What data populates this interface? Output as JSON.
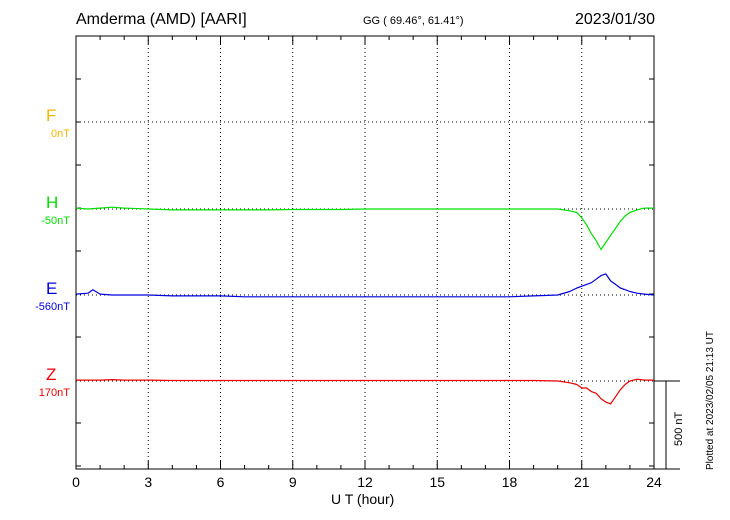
{
  "header": {
    "title": "Amderma (AMD)  [AARI]",
    "coords": "GG ( 69.46°,  61.41°)",
    "date": "2023/01/30"
  },
  "footer": {
    "plotted": "Plotted at 2023/02/05 21:13 UT"
  },
  "scale_bar": {
    "label": "500 nT",
    "value_nT": 500
  },
  "chart_data": {
    "type": "line",
    "xlabel": "U T (hour)",
    "xlim": [
      0,
      24
    ],
    "x_ticks": [
      0,
      3,
      6,
      9,
      12,
      15,
      18,
      21,
      24
    ],
    "x_tick_labels": [
      "0",
      "3",
      "6",
      "9",
      "12",
      "15",
      "18",
      "21",
      "24"
    ],
    "grid": true,
    "series": [
      {
        "name": "F",
        "baseline_label": "0nT",
        "color": "#f5b800",
        "x": [],
        "y": []
      },
      {
        "name": "H",
        "baseline_label": "-50nT",
        "color": "#00e000",
        "x": [
          0,
          0.5,
          1,
          1.5,
          2,
          3,
          4,
          5,
          6,
          7,
          8,
          9,
          10,
          11,
          12,
          13,
          14,
          15,
          16,
          17,
          18,
          19,
          20,
          20.5,
          20.8,
          21,
          21.2,
          21.4,
          21.6,
          21.8,
          22,
          22.2,
          22.4,
          22.6,
          22.8,
          23,
          23.3,
          23.6,
          24
        ],
        "y": [
          5,
          0,
          5,
          10,
          5,
          0,
          -5,
          -5,
          -5,
          -5,
          -5,
          -3,
          -3,
          -3,
          0,
          0,
          0,
          0,
          0,
          0,
          0,
          0,
          0,
          -10,
          -20,
          -50,
          -90,
          -140,
          -180,
          -230,
          -190,
          -150,
          -110,
          -70,
          -40,
          -20,
          -5,
          5,
          5
        ]
      },
      {
        "name": "E",
        "baseline_label": "-560nT",
        "color": "#0000dd",
        "x": [
          0,
          0.5,
          0.7,
          1,
          1.5,
          2,
          3,
          4,
          5,
          6,
          7,
          8,
          9,
          10,
          11,
          12,
          13,
          14,
          15,
          16,
          17,
          18,
          19,
          20,
          20.5,
          20.8,
          21,
          21.2,
          21.4,
          21.6,
          21.8,
          22,
          22.2,
          22.4,
          22.6,
          22.8,
          23,
          23.3,
          23.6,
          24
        ],
        "y": [
          5,
          10,
          30,
          5,
          0,
          0,
          0,
          -5,
          -5,
          -5,
          -10,
          -10,
          -10,
          -10,
          -10,
          -10,
          -10,
          -10,
          -10,
          -10,
          -10,
          -10,
          -5,
          0,
          20,
          40,
          50,
          60,
          70,
          90,
          110,
          120,
          80,
          60,
          40,
          30,
          20,
          10,
          5,
          0
        ]
      },
      {
        "name": "Z",
        "baseline_label": "170nT",
        "color": "#ee0000",
        "x": [
          0,
          0.5,
          1,
          1.5,
          2,
          3,
          4,
          5,
          6,
          7,
          8,
          9,
          10,
          11,
          12,
          13,
          14,
          15,
          16,
          17,
          18,
          19,
          20,
          20.5,
          20.8,
          21,
          21.2,
          21.4,
          21.6,
          21.8,
          22,
          22.2,
          22.4,
          22.6,
          22.8,
          23,
          23.3,
          23.6,
          24
        ],
        "y": [
          5,
          5,
          5,
          8,
          5,
          5,
          3,
          3,
          3,
          3,
          3,
          3,
          3,
          3,
          3,
          3,
          3,
          3,
          3,
          3,
          3,
          3,
          0,
          -10,
          -20,
          -40,
          -40,
          -60,
          -70,
          -100,
          -120,
          -130,
          -90,
          -50,
          -20,
          0,
          10,
          5,
          5
        ]
      }
    ]
  }
}
